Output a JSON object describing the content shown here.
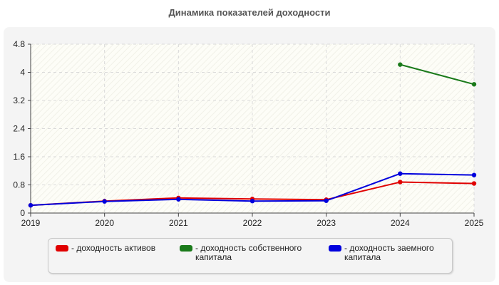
{
  "chart_data": {
    "type": "line",
    "title": "Динамика показателей доходности",
    "x": [
      "2019",
      "2020",
      "2021",
      "2022",
      "2023",
      "2024",
      "2025"
    ],
    "ylim": [
      0,
      4.8
    ],
    "yticks": [
      "0",
      "0.8",
      "1.6",
      "2.4",
      "3.2",
      "4",
      "4.8"
    ],
    "grid": true,
    "legend_position": "bottom",
    "series": [
      {
        "name": "- доходность активов",
        "color": "#e00000",
        "values": [
          0.22,
          0.34,
          0.43,
          0.4,
          0.38,
          0.88,
          0.84
        ]
      },
      {
        "name": "- доходность собственного капитала",
        "color": "#1a7a1a",
        "values": [
          null,
          null,
          null,
          null,
          null,
          4.22,
          3.66
        ]
      },
      {
        "name": "- доходность заемного капитала",
        "color": "#0000dd",
        "values": [
          0.22,
          0.33,
          0.39,
          0.34,
          0.35,
          1.12,
          1.08
        ]
      }
    ]
  }
}
